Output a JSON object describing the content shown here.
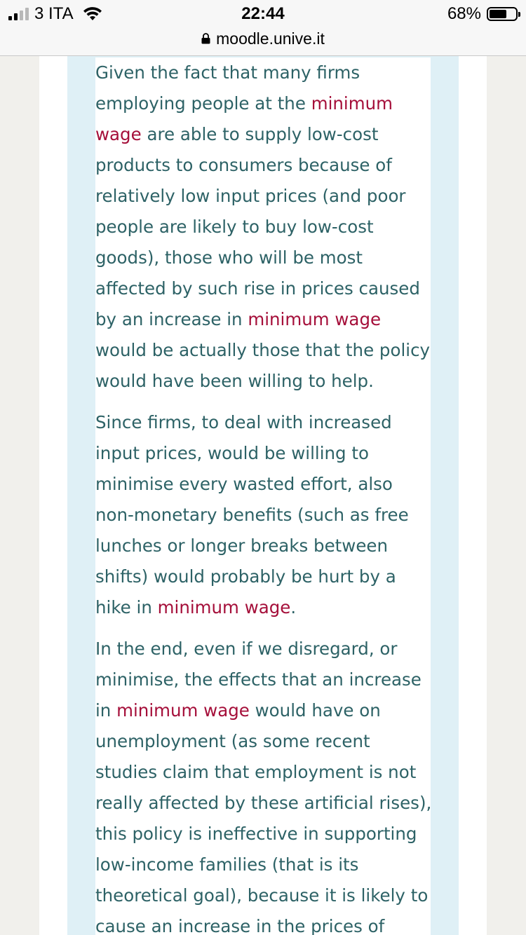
{
  "status_bar": {
    "carrier": "3 ITA",
    "time": "22:44",
    "battery_percent": "68%",
    "battery_level": 0.68,
    "signal_bars_filled": 2,
    "signal_bars_total": 4
  },
  "browser": {
    "url": "moodle.unive.it"
  },
  "content": {
    "paragraphs": [
      {
        "parts": [
          "Given the fact that many firms employing people at the ",
          "minimum wage",
          " are able to supply low-cost products to consumers because of relatively low input prices (and poor people are likely to buy low-cost goods), those who will be most affected by such rise in prices caused by an increase in ",
          "minimum wage",
          " would be actually those that the policy would have been willing to help."
        ]
      },
      {
        "parts": [
          "Since firms, to deal with increased input prices, would be willing to minimise every wasted effort, also non-monetary benefits (such as free lunches or longer breaks between shifts) would probably be hurt by a hike in ",
          "minimum wage",
          "."
        ]
      },
      {
        "parts": [
          "In the end, even if we disregard, or minimise, the effects that an increase in ",
          "minimum wage",
          " would have on unemployment (as some recent studies claim that employment is not really affected by these artificial rises), this policy is ineffective in supporting low-income families (that is its theoretical goal), because it is likely to cause an increase in the prices of"
        ]
      }
    ]
  },
  "colors": {
    "body_text": "#2d6266",
    "highlight_link": "#a50f3a",
    "quote_band": "#dff0f6",
    "page_bg": "#f1f0ec"
  }
}
